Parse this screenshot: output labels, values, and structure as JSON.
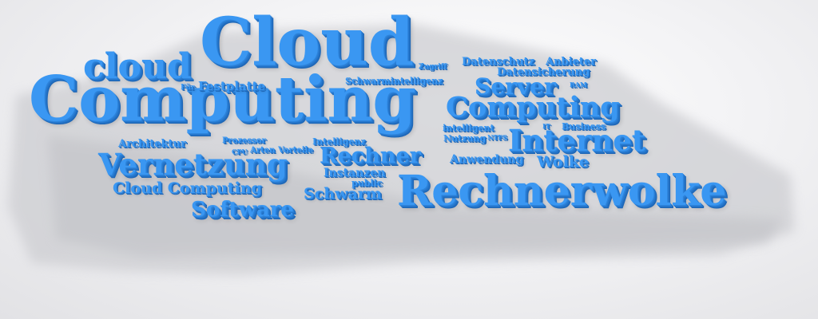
{
  "colors": {
    "word": "#3a97f2",
    "word_dark": "#1e66b6",
    "background": "#f1f1f3",
    "shadow": "#cfd0d4"
  },
  "words": [
    "Cloud",
    "cloud",
    "Computing",
    "Computing",
    "Rechnerwolke",
    "Internet",
    "Vernetzung",
    "Rechner",
    "Server",
    "Software",
    "Cloud Computing",
    "Schwarm",
    "Wolke",
    "Anwendung",
    "Datenschutz",
    "Anbieter",
    "Datensicherung",
    "Schwarmintelligenz",
    "Festplatte",
    "Für",
    "Zugriff",
    "Architektur",
    "Prozessor",
    "CPU",
    "Arten",
    "Vorteile",
    "Intelligenz",
    "Instanzen",
    "public",
    "intelligent",
    "Nutzung",
    "NTFS",
    "IT",
    "Business",
    "RAM"
  ]
}
